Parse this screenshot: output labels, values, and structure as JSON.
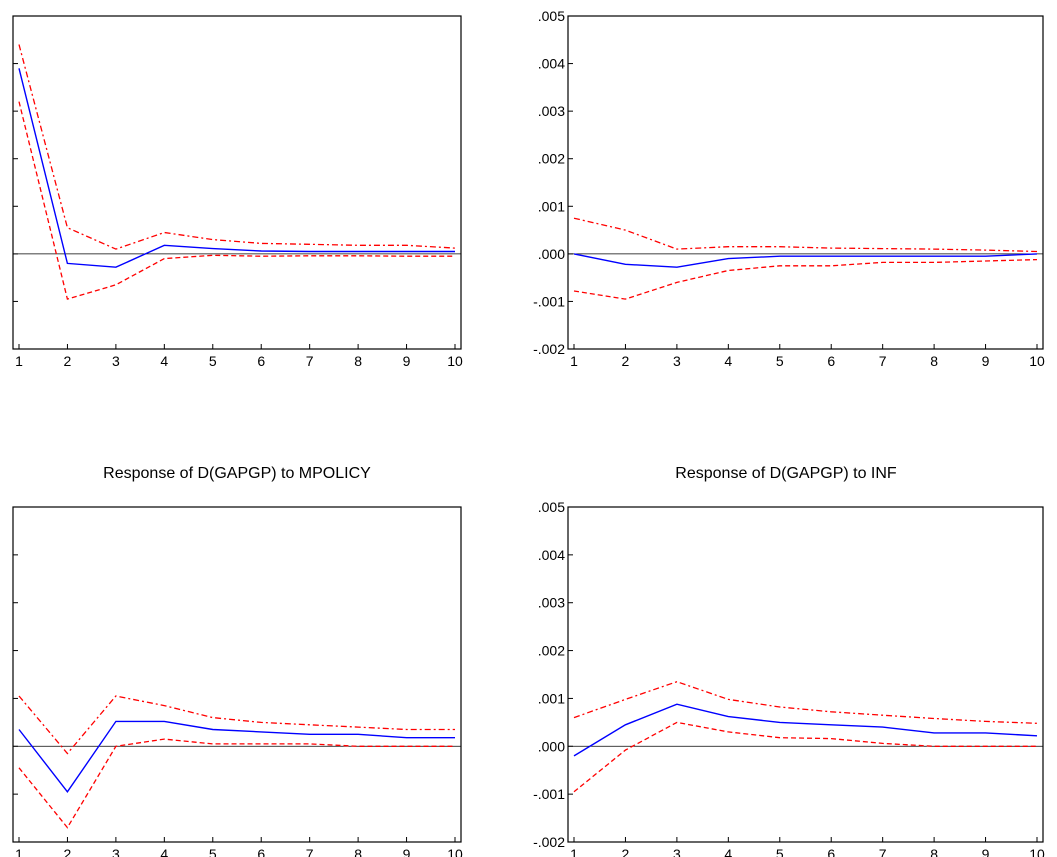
{
  "chart_data": [
    {
      "type": "line",
      "title": "",
      "x": [
        1,
        2,
        3,
        4,
        5,
        6,
        7,
        8,
        9,
        10
      ],
      "xticks": [
        "1",
        "2",
        "3",
        "4",
        "5",
        "6",
        "7",
        "8",
        "9",
        "10"
      ],
      "ylim": [
        -0.002,
        0.005
      ],
      "yticks": [],
      "grid": false,
      "series": [
        {
          "role": "response",
          "values": [
            0.0039,
            -0.0002,
            -0.00028,
            0.00018,
            0.00011,
            6e-05,
            5e-05,
            5e-05,
            5e-05,
            5e-05
          ]
        },
        {
          "role": "upper_band",
          "values": [
            0.0044,
            0.00055,
            0.0001,
            0.00045,
            0.0003,
            0.00022,
            0.0002,
            0.00018,
            0.00018,
            0.00012
          ]
        },
        {
          "role": "lower_band",
          "values": [
            0.0032,
            -0.00095,
            -0.00065,
            -0.0001,
            -3e-05,
            -5e-05,
            -4e-05,
            -4e-05,
            -5e-05,
            -5e-05
          ]
        }
      ]
    },
    {
      "type": "line",
      "title": "",
      "x": [
        1,
        2,
        3,
        4,
        5,
        6,
        7,
        8,
        9,
        10
      ],
      "xticks": [
        "1",
        "2",
        "3",
        "4",
        "5",
        "6",
        "7",
        "8",
        "9",
        "10"
      ],
      "ylim": [
        -0.002,
        0.005
      ],
      "yticks": [
        ".005",
        ".004",
        ".003",
        ".002",
        ".001",
        ".000",
        "-.001",
        "-.002"
      ],
      "grid": false,
      "series": [
        {
          "role": "response",
          "values": [
            0.0,
            -0.00022,
            -0.00028,
            -0.0001,
            -5e-05,
            -5e-05,
            -5e-05,
            -5e-05,
            -5e-05,
            0.0
          ]
        },
        {
          "role": "upper_band",
          "values": [
            0.00075,
            0.0005,
            0.0001,
            0.00015,
            0.00015,
            0.00012,
            0.00011,
            0.0001,
            8e-05,
            5e-05
          ]
        },
        {
          "role": "lower_band",
          "values": [
            -0.00078,
            -0.00095,
            -0.0006,
            -0.00035,
            -0.00025,
            -0.00025,
            -0.00018,
            -0.00018,
            -0.00015,
            -0.00012
          ]
        }
      ]
    },
    {
      "type": "line",
      "title": "Response of D(GAPGP) to MPOLICY",
      "x": [
        1,
        2,
        3,
        4,
        5,
        6,
        7,
        8,
        9,
        10
      ],
      "xticks": [
        "1",
        "2",
        "3",
        "4",
        "5",
        "6",
        "7",
        "8",
        "9",
        "10"
      ],
      "ylim": [
        -0.002,
        0.005
      ],
      "yticks": [],
      "grid": false,
      "series": [
        {
          "role": "response",
          "values": [
            0.00035,
            -0.00095,
            0.00052,
            0.00052,
            0.00035,
            0.0003,
            0.00025,
            0.00025,
            0.00018,
            0.00018
          ]
        },
        {
          "role": "upper_band",
          "values": [
            0.00105,
            -0.00015,
            0.00105,
            0.00085,
            0.0006,
            0.0005,
            0.00045,
            0.0004,
            0.00035,
            0.00035
          ]
        },
        {
          "role": "lower_band",
          "values": [
            -0.00045,
            -0.0017,
            0.0,
            0.00015,
            5e-05,
            5e-05,
            5e-05,
            0.0,
            0.0,
            0.0
          ]
        }
      ]
    },
    {
      "type": "line",
      "title": "Response of D(GAPGP) to INF",
      "x": [
        1,
        2,
        3,
        4,
        5,
        6,
        7,
        8,
        9,
        10
      ],
      "xticks": [
        "1",
        "2",
        "3",
        "4",
        "5",
        "6",
        "7",
        "8",
        "9",
        "10"
      ],
      "ylim": [
        -0.002,
        0.005
      ],
      "yticks": [
        ".005",
        ".004",
        ".003",
        ".002",
        ".001",
        ".000",
        "-.001",
        "-.002"
      ],
      "grid": false,
      "series": [
        {
          "role": "response",
          "values": [
            -0.0002,
            0.00045,
            0.00088,
            0.00062,
            0.0005,
            0.00045,
            0.0004,
            0.00028,
            0.00028,
            0.00022
          ]
        },
        {
          "role": "upper_band",
          "values": [
            0.0006,
            0.00098,
            0.00135,
            0.00098,
            0.00082,
            0.00072,
            0.00065,
            0.00058,
            0.00052,
            0.00048
          ]
        },
        {
          "role": "lower_band",
          "values": [
            -0.00095,
            -8e-05,
            0.0005,
            0.0003,
            0.00018,
            0.00016,
            6e-05,
            0.0,
            0.0,
            0.0
          ]
        }
      ]
    }
  ],
  "style": {
    "response_color": "#0000ff",
    "band_color": "#ff0000",
    "zero_line_color": "#000000",
    "frame_color": "#000000"
  }
}
